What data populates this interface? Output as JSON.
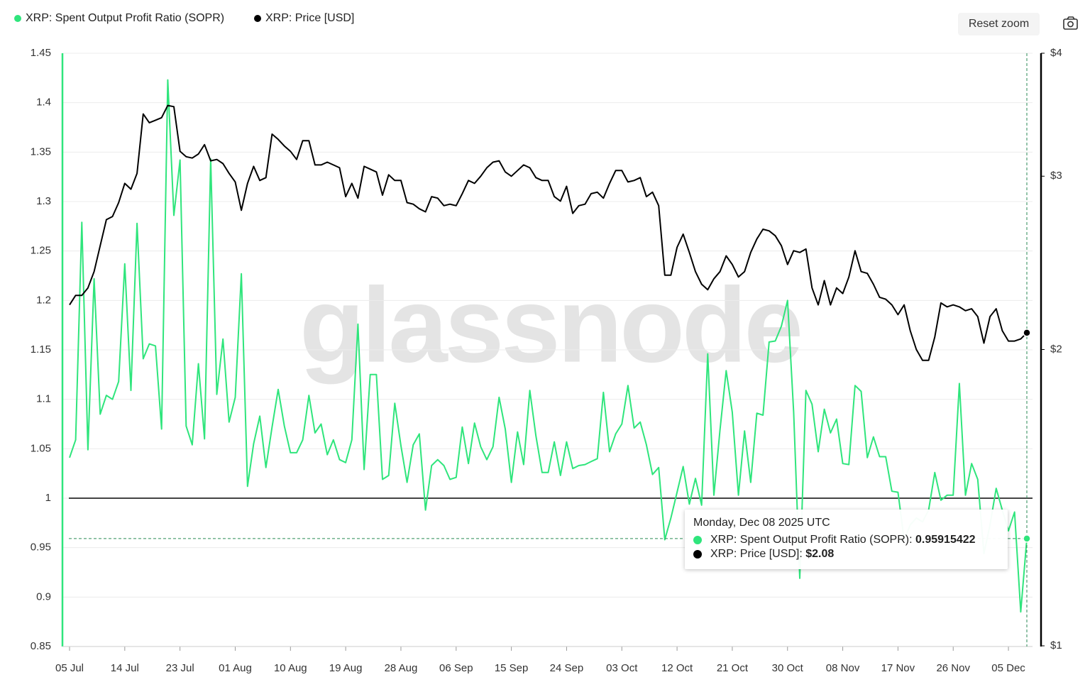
{
  "chart_data": {
    "type": "line",
    "watermark": "glassnode",
    "reset_zoom": "Reset zoom",
    "x": [
      "05 Jul",
      "06 Jul",
      "07 Jul",
      "08 Jul",
      "09 Jul",
      "10 Jul",
      "11 Jul",
      "12 Jul",
      "13 Jul",
      "14 Jul",
      "15 Jul",
      "16 Jul",
      "17 Jul",
      "18 Jul",
      "19 Jul",
      "20 Jul",
      "21 Jul",
      "22 Jul",
      "23 Jul",
      "24 Jul",
      "25 Jul",
      "26 Jul",
      "27 Jul",
      "28 Jul",
      "29 Jul",
      "30 Jul",
      "31 Jul",
      "01 Aug",
      "02 Aug",
      "03 Aug",
      "04 Aug",
      "05 Aug",
      "06 Aug",
      "07 Aug",
      "08 Aug",
      "09 Aug",
      "10 Aug",
      "11 Aug",
      "12 Aug",
      "13 Aug",
      "14 Aug",
      "15 Aug",
      "16 Aug",
      "17 Aug",
      "18 Aug",
      "19 Aug",
      "20 Aug",
      "21 Aug",
      "22 Aug",
      "23 Aug",
      "24 Aug",
      "25 Aug",
      "26 Aug",
      "27 Aug",
      "28 Aug",
      "29 Aug",
      "30 Aug",
      "31 Aug",
      "01 Sep",
      "02 Sep",
      "03 Sep",
      "04 Sep",
      "05 Sep",
      "06 Sep",
      "07 Sep",
      "08 Sep",
      "09 Sep",
      "10 Sep",
      "11 Sep",
      "12 Sep",
      "13 Sep",
      "14 Sep",
      "15 Sep",
      "16 Sep",
      "17 Sep",
      "18 Sep",
      "19 Sep",
      "20 Sep",
      "21 Sep",
      "22 Sep",
      "23 Sep",
      "24 Sep",
      "25 Sep",
      "26 Sep",
      "27 Sep",
      "28 Sep",
      "29 Sep",
      "30 Sep",
      "01 Oct",
      "02 Oct",
      "03 Oct",
      "04 Oct",
      "05 Oct",
      "06 Oct",
      "07 Oct",
      "08 Oct",
      "09 Oct",
      "10 Oct",
      "11 Oct",
      "12 Oct",
      "13 Oct",
      "14 Oct",
      "15 Oct",
      "16 Oct",
      "17 Oct",
      "18 Oct",
      "19 Oct",
      "20 Oct",
      "21 Oct",
      "22 Oct",
      "23 Oct",
      "24 Oct",
      "25 Oct",
      "26 Oct",
      "27 Oct",
      "28 Oct",
      "29 Oct",
      "30 Oct",
      "31 Oct",
      "01 Nov",
      "02 Nov",
      "03 Nov",
      "04 Nov",
      "05 Nov",
      "06 Nov",
      "07 Nov",
      "08 Nov",
      "09 Nov",
      "10 Nov",
      "11 Nov",
      "12 Nov",
      "13 Nov",
      "14 Nov",
      "15 Nov",
      "16 Nov",
      "17 Nov",
      "18 Nov",
      "19 Nov",
      "20 Nov",
      "21 Nov",
      "22 Nov",
      "23 Nov",
      "24 Nov",
      "25 Nov",
      "26 Nov",
      "27 Nov",
      "28 Nov",
      "29 Nov",
      "30 Nov",
      "01 Dec",
      "02 Dec",
      "03 Dec",
      "04 Dec",
      "05 Dec",
      "06 Dec",
      "07 Dec",
      "08 Dec"
    ],
    "xticks": [
      "05 Jul",
      "14 Jul",
      "23 Jul",
      "01 Aug",
      "10 Aug",
      "19 Aug",
      "28 Aug",
      "06 Sep",
      "15 Sep",
      "24 Sep",
      "03 Oct",
      "12 Oct",
      "21 Oct",
      "30 Oct",
      "08 Nov",
      "17 Nov",
      "26 Nov",
      "05 Dec"
    ],
    "ylim": [
      0.85,
      1.45
    ],
    "yticks": [
      0.85,
      0.9,
      0.95,
      1,
      1.05,
      1.1,
      1.15,
      1.2,
      1.25,
      1.3,
      1.35,
      1.4,
      1.45
    ],
    "y2lim": [
      1,
      4
    ],
    "y2scale": "log",
    "y2ticks": [
      {
        "value": 1,
        "label": "$1"
      },
      {
        "value": 2,
        "label": "$2"
      },
      {
        "value": 3,
        "label": "$3"
      },
      {
        "value": 4,
        "label": "$4"
      }
    ],
    "grid": true,
    "reference_line": 1,
    "series": [
      {
        "name": "XRP: Spent Output Profit Ratio (SOPR)",
        "color": "#2fe57c",
        "values": [
          1.041,
          1.059,
          1.279,
          1.049,
          1.222,
          1.085,
          1.104,
          1.1,
          1.118,
          1.237,
          1.109,
          1.278,
          1.141,
          1.156,
          1.154,
          1.07,
          1.423,
          1.286,
          1.342,
          1.073,
          1.054,
          1.136,
          1.06,
          1.343,
          1.105,
          1.161,
          1.077,
          1.102,
          1.227,
          1.012,
          1.055,
          1.083,
          1.031,
          1.072,
          1.11,
          1.073,
          1.046,
          1.046,
          1.059,
          1.104,
          1.066,
          1.075,
          1.044,
          1.059,
          1.039,
          1.036,
          1.059,
          1.176,
          1.029,
          1.125,
          1.125,
          1.019,
          1.023,
          1.096,
          1.053,
          1.016,
          1.054,
          1.065,
          0.988,
          1.033,
          1.039,
          1.033,
          1.019,
          1.021,
          1.072,
          1.035,
          1.076,
          1.052,
          1.039,
          1.052,
          1.102,
          1.07,
          1.016,
          1.067,
          1.034,
          1.109,
          1.063,
          1.026,
          1.026,
          1.057,
          1.023,
          1.057,
          1.03,
          1.033,
          1.034,
          1.037,
          1.04,
          1.107,
          1.047,
          1.065,
          1.075,
          1.114,
          1.071,
          1.077,
          1.054,
          1.024,
          1.031,
          0.958,
          0.98,
          1.006,
          1.032,
          0.994,
          1.02,
          0.993,
          1.146,
          1.003,
          1.069,
          1.129,
          1.087,
          1.003,
          1.068,
          1.016,
          1.086,
          1.084,
          1.158,
          1.159,
          1.174,
          1.2,
          1.087,
          0.919,
          1.109,
          1.095,
          1.047,
          1.09,
          1.066,
          1.08,
          1.035,
          1.034,
          1.114,
          1.108,
          1.041,
          1.062,
          1.042,
          1.042,
          1.007,
          1.006,
          0.958,
          0.973,
          0.98,
          0.976,
          0.988,
          1.026,
          0.998,
          1.003,
          1.003,
          1.116,
          1.003,
          1.035,
          1.019,
          0.944,
          0.973,
          1.01,
          0.988,
          0.967,
          0.986,
          0.885,
          0.95915422
        ]
      },
      {
        "name": "XRP: Price [USD]",
        "color": "#000000",
        "axis": "y2",
        "values": [
          2.22,
          2.27,
          2.27,
          2.31,
          2.4,
          2.55,
          2.71,
          2.73,
          2.82,
          2.95,
          2.91,
          3.02,
          3.47,
          3.4,
          3.42,
          3.44,
          3.54,
          3.53,
          3.18,
          3.14,
          3.13,
          3.16,
          3.23,
          3.11,
          3.12,
          3.09,
          3.02,
          2.96,
          2.77,
          2.95,
          3.07,
          2.97,
          2.99,
          3.31,
          3.27,
          3.22,
          3.18,
          3.12,
          3.26,
          3.26,
          3.08,
          3.08,
          3.1,
          3.08,
          3.06,
          2.86,
          2.95,
          2.85,
          3.07,
          3.05,
          3.03,
          2.87,
          3.01,
          2.97,
          2.97,
          2.82,
          2.81,
          2.78,
          2.76,
          2.86,
          2.85,
          2.8,
          2.81,
          2.8,
          2.88,
          2.97,
          2.95,
          3.0,
          3.06,
          3.1,
          3.11,
          3.03,
          3.0,
          3.04,
          3.08,
          3.06,
          2.99,
          2.97,
          2.97,
          2.86,
          2.83,
          2.93,
          2.75,
          2.8,
          2.81,
          2.88,
          2.89,
          2.85,
          2.95,
          3.04,
          3.04,
          2.96,
          2.97,
          2.99,
          2.86,
          2.89,
          2.8,
          2.38,
          2.38,
          2.54,
          2.62,
          2.51,
          2.4,
          2.33,
          2.3,
          2.36,
          2.4,
          2.49,
          2.44,
          2.37,
          2.4,
          2.51,
          2.59,
          2.65,
          2.64,
          2.61,
          2.55,
          2.44,
          2.52,
          2.51,
          2.53,
          2.31,
          2.22,
          2.35,
          2.22,
          2.31,
          2.28,
          2.37,
          2.52,
          2.4,
          2.39,
          2.33,
          2.26,
          2.25,
          2.22,
          2.17,
          2.22,
          2.09,
          2.0,
          1.95,
          1.95,
          2.06,
          2.23,
          2.21,
          2.22,
          2.21,
          2.19,
          2.2,
          2.16,
          2.03,
          2.16,
          2.2,
          2.09,
          2.04,
          2.04,
          2.05,
          2.08
        ]
      }
    ],
    "tooltip": {
      "title": "Monday, Dec 08 2025 UTC",
      "price_label": "$2.08"
    }
  }
}
